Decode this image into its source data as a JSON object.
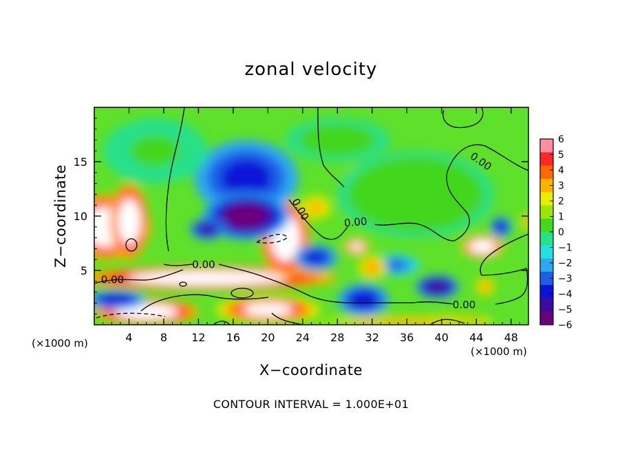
{
  "chart_data": {
    "type": "heatmap",
    "title": "zonal velocity",
    "xlabel": "X−coordinate",
    "ylabel": "Z−coordinate",
    "x_unit_label": "(×1000 m)",
    "x_unit_label_right": "(×1000 m)",
    "footer": "CONTOUR INTERVAL = 1.000E+01",
    "xlim": [
      0,
      50
    ],
    "ylim": [
      0,
      20
    ],
    "x_ticks": [
      4,
      8,
      12,
      16,
      20,
      24,
      28,
      32,
      36,
      40,
      44,
      48
    ],
    "y_ticks": [
      5,
      10,
      15
    ],
    "colorbar": {
      "ticks": [
        6,
        5,
        4,
        3,
        2,
        1,
        0,
        -1,
        -2,
        -3,
        -4,
        -5,
        -6
      ],
      "range": [
        -6,
        6
      ],
      "colors": [
        "#6a007a",
        "#3b0ca0",
        "#0b14d6",
        "#1f5fe8",
        "#2fa9ee",
        "#25dfe0",
        "#26e08a",
        "#43d71f",
        "#9be600",
        "#e6ef00",
        "#ffb300",
        "#ff6a00",
        "#ff2828",
        "#ff8fa0"
      ]
    },
    "contour_labels": [
      {
        "text": "0.00",
        "x": 44.5,
        "y": 15.0,
        "rotate": 35
      },
      {
        "text": "0.00",
        "x": 23.7,
        "y": 10.6,
        "rotate": 60
      },
      {
        "text": "0.00",
        "x": 30.1,
        "y": 9.4,
        "rotate": -5
      },
      {
        "text": "0.00",
        "x": 12.6,
        "y": 5.5,
        "rotate": 0
      },
      {
        "text": "0.00",
        "x": 2.1,
        "y": 4.1,
        "rotate": 0
      },
      {
        "text": "0.00",
        "x": 42.6,
        "y": 1.8,
        "rotate": 0
      }
    ],
    "features": [
      {
        "x": 1.5,
        "y": 9.0,
        "rx": 5.0,
        "ry": 3.0,
        "value": 9
      },
      {
        "x": 4.0,
        "y": 9.5,
        "rx": 2.2,
        "ry": 3.5,
        "value": 9
      },
      {
        "x": 13.0,
        "y": 4.3,
        "rx": 15.0,
        "ry": 1.1,
        "value": 9
      },
      {
        "x": 6.0,
        "y": 1.2,
        "rx": 6.0,
        "ry": 1.2,
        "value": 9
      },
      {
        "x": 20.0,
        "y": 1.4,
        "rx": 6.0,
        "ry": 1.3,
        "value": 7
      },
      {
        "x": 22.0,
        "y": 8.0,
        "rx": 2.8,
        "ry": 3.6,
        "value": 9
      },
      {
        "x": 20.0,
        "y": 12.0,
        "rx": 1.5,
        "ry": 1.0,
        "value": 9
      },
      {
        "x": 15.0,
        "y": 9.0,
        "rx": 1.6,
        "ry": 0.6,
        "value": 9
      },
      {
        "x": 30.0,
        "y": 2.3,
        "rx": 1.8,
        "ry": 0.7,
        "value": 9
      },
      {
        "x": 30.2,
        "y": 7.2,
        "rx": 1.5,
        "ry": 0.8,
        "value": 7
      },
      {
        "x": 44.7,
        "y": 7.2,
        "rx": 2.5,
        "ry": 1.1,
        "value": 8
      },
      {
        "x": 41.0,
        "y": 0.3,
        "rx": 5.0,
        "ry": 0.6,
        "value": 7
      },
      {
        "x": 17.5,
        "y": 13.5,
        "rx": 6.0,
        "ry": 3.5,
        "value": -3.8
      },
      {
        "x": 17.5,
        "y": 10.0,
        "rx": 5.0,
        "ry": 2.2,
        "value": -5.6
      },
      {
        "x": 13.0,
        "y": 8.8,
        "rx": 2.0,
        "ry": 1.0,
        "value": -4.5
      },
      {
        "x": 25.5,
        "y": 6.2,
        "rx": 2.5,
        "ry": 1.2,
        "value": -3.5
      },
      {
        "x": 39.5,
        "y": 3.5,
        "rx": 2.5,
        "ry": 1.1,
        "value": -5.0
      },
      {
        "x": 34.5,
        "y": 5.5,
        "rx": 3.0,
        "ry": 1.0,
        "value": -2.5
      },
      {
        "x": 2.5,
        "y": 2.3,
        "rx": 3.5,
        "ry": 0.9,
        "value": -4.0
      },
      {
        "x": 46.8,
        "y": 9.0,
        "rx": 1.2,
        "ry": 1.0,
        "value": -4.0
      },
      {
        "x": 31.0,
        "y": 2.3,
        "rx": 3.0,
        "ry": 1.5,
        "value": -4.0
      },
      {
        "x": 25.5,
        "y": 10.8,
        "rx": 2.0,
        "ry": 1.2,
        "value": 3.5
      },
      {
        "x": 30.0,
        "y": 13.3,
        "rx": 1.4,
        "ry": 1.6,
        "value": 3.0
      },
      {
        "x": 32.0,
        "y": 5.3,
        "rx": 1.8,
        "ry": 1.2,
        "value": 4.0
      },
      {
        "x": 45.0,
        "y": 3.5,
        "rx": 1.2,
        "ry": 0.9,
        "value": 4.0
      },
      {
        "x": 35.0,
        "y": 0.3,
        "rx": 10.0,
        "ry": 0.5,
        "value": 4.0
      },
      {
        "x": 49.8,
        "y": 9.5,
        "rx": 0.6,
        "ry": 1.0,
        "value": 4.0
      },
      {
        "x": 37.0,
        "y": 12.0,
        "rx": 9.0,
        "ry": 4.0,
        "value": 0.9
      },
      {
        "x": 7.0,
        "y": 16.0,
        "rx": 6.0,
        "ry": 3.0,
        "value": 0.5
      },
      {
        "x": 28.0,
        "y": 17.0,
        "rx": 6.0,
        "ry": 2.0,
        "value": 0.8
      }
    ]
  }
}
